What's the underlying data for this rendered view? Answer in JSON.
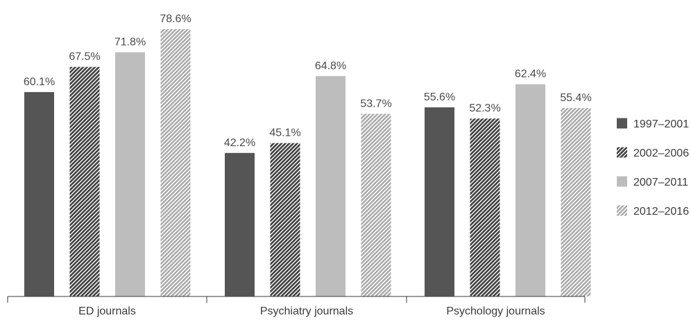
{
  "chart_data": {
    "type": "bar",
    "categories": [
      "ED journals",
      "Psychiatry journals",
      "Psychology journals"
    ],
    "series": [
      {
        "name": "1997–2001",
        "values": [
          60.1,
          42.2,
          55.6
        ],
        "value_labels": [
          "60.1%",
          "42.2%",
          "55.6%"
        ],
        "color": "#555555",
        "pattern": "solid"
      },
      {
        "name": "2002–2006",
        "values": [
          67.5,
          45.1,
          52.3
        ],
        "value_labels": [
          "67.5%",
          "45.1%",
          "52.3%"
        ],
        "color": "#444444",
        "pattern": "dense-diagonal-hatch"
      },
      {
        "name": "2007–2011",
        "values": [
          71.8,
          64.8,
          62.4
        ],
        "value_labels": [
          "71.8%",
          "64.8%",
          "62.4%"
        ],
        "color": "#bdbdbd",
        "pattern": "solid"
      },
      {
        "name": "2012–2016",
        "values": [
          78.6,
          53.7,
          55.4
        ],
        "value_labels": [
          "78.6%",
          "53.7%",
          "55.4%"
        ],
        "color": "#a8a8a8",
        "pattern": "light-diagonal-hatch"
      }
    ],
    "title": "",
    "xlabel": "",
    "ylabel": "",
    "ylim": [
      0,
      100
    ],
    "grid": false,
    "legend_position": "right",
    "value_labels_shown": true
  }
}
